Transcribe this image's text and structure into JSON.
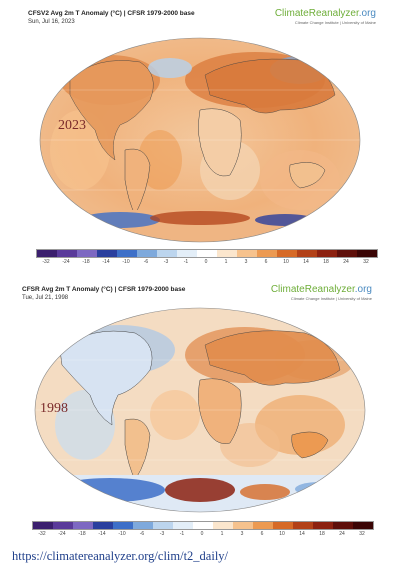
{
  "panels": [
    {
      "title": "CFSV2 Avg 2m T Anomaly (°C) | CFSR 1979-2000 base",
      "date": "Sun, Jul 16, 2023",
      "year_label": "2023"
    },
    {
      "title": "CFSR Avg 2m T Anomaly (°C) | CFSR 1979-2000 base",
      "date": "Tue, Jul 21, 1998",
      "year_label": "1998"
    }
  ],
  "brand": {
    "name": "ClimateReanalyzer",
    "name_suffix": ".org",
    "subtitle": "Climate Change Institute | University of Maine"
  },
  "colorbar": {
    "ticks": [
      "-32",
      "-24",
      "-18",
      "-14",
      "-10",
      "-6",
      "-3",
      "-1",
      "0",
      "1",
      "3",
      "6",
      "10",
      "14",
      "18",
      "24",
      "32"
    ],
    "colors": [
      "#3b1f6e",
      "#5a3a9a",
      "#7d68c2",
      "#2a3f9e",
      "#3d6fc8",
      "#7ea9dc",
      "#bcd5ee",
      "#e3eef8",
      "#ffffff",
      "#fbe6cd",
      "#f6c28d",
      "#ec9a52",
      "#d66a27",
      "#b24118",
      "#8c2110",
      "#5e0f0a",
      "#3a0505"
    ]
  },
  "footer": {
    "url": "https://climatereanalyzer.org/clim/t2_daily/"
  }
}
